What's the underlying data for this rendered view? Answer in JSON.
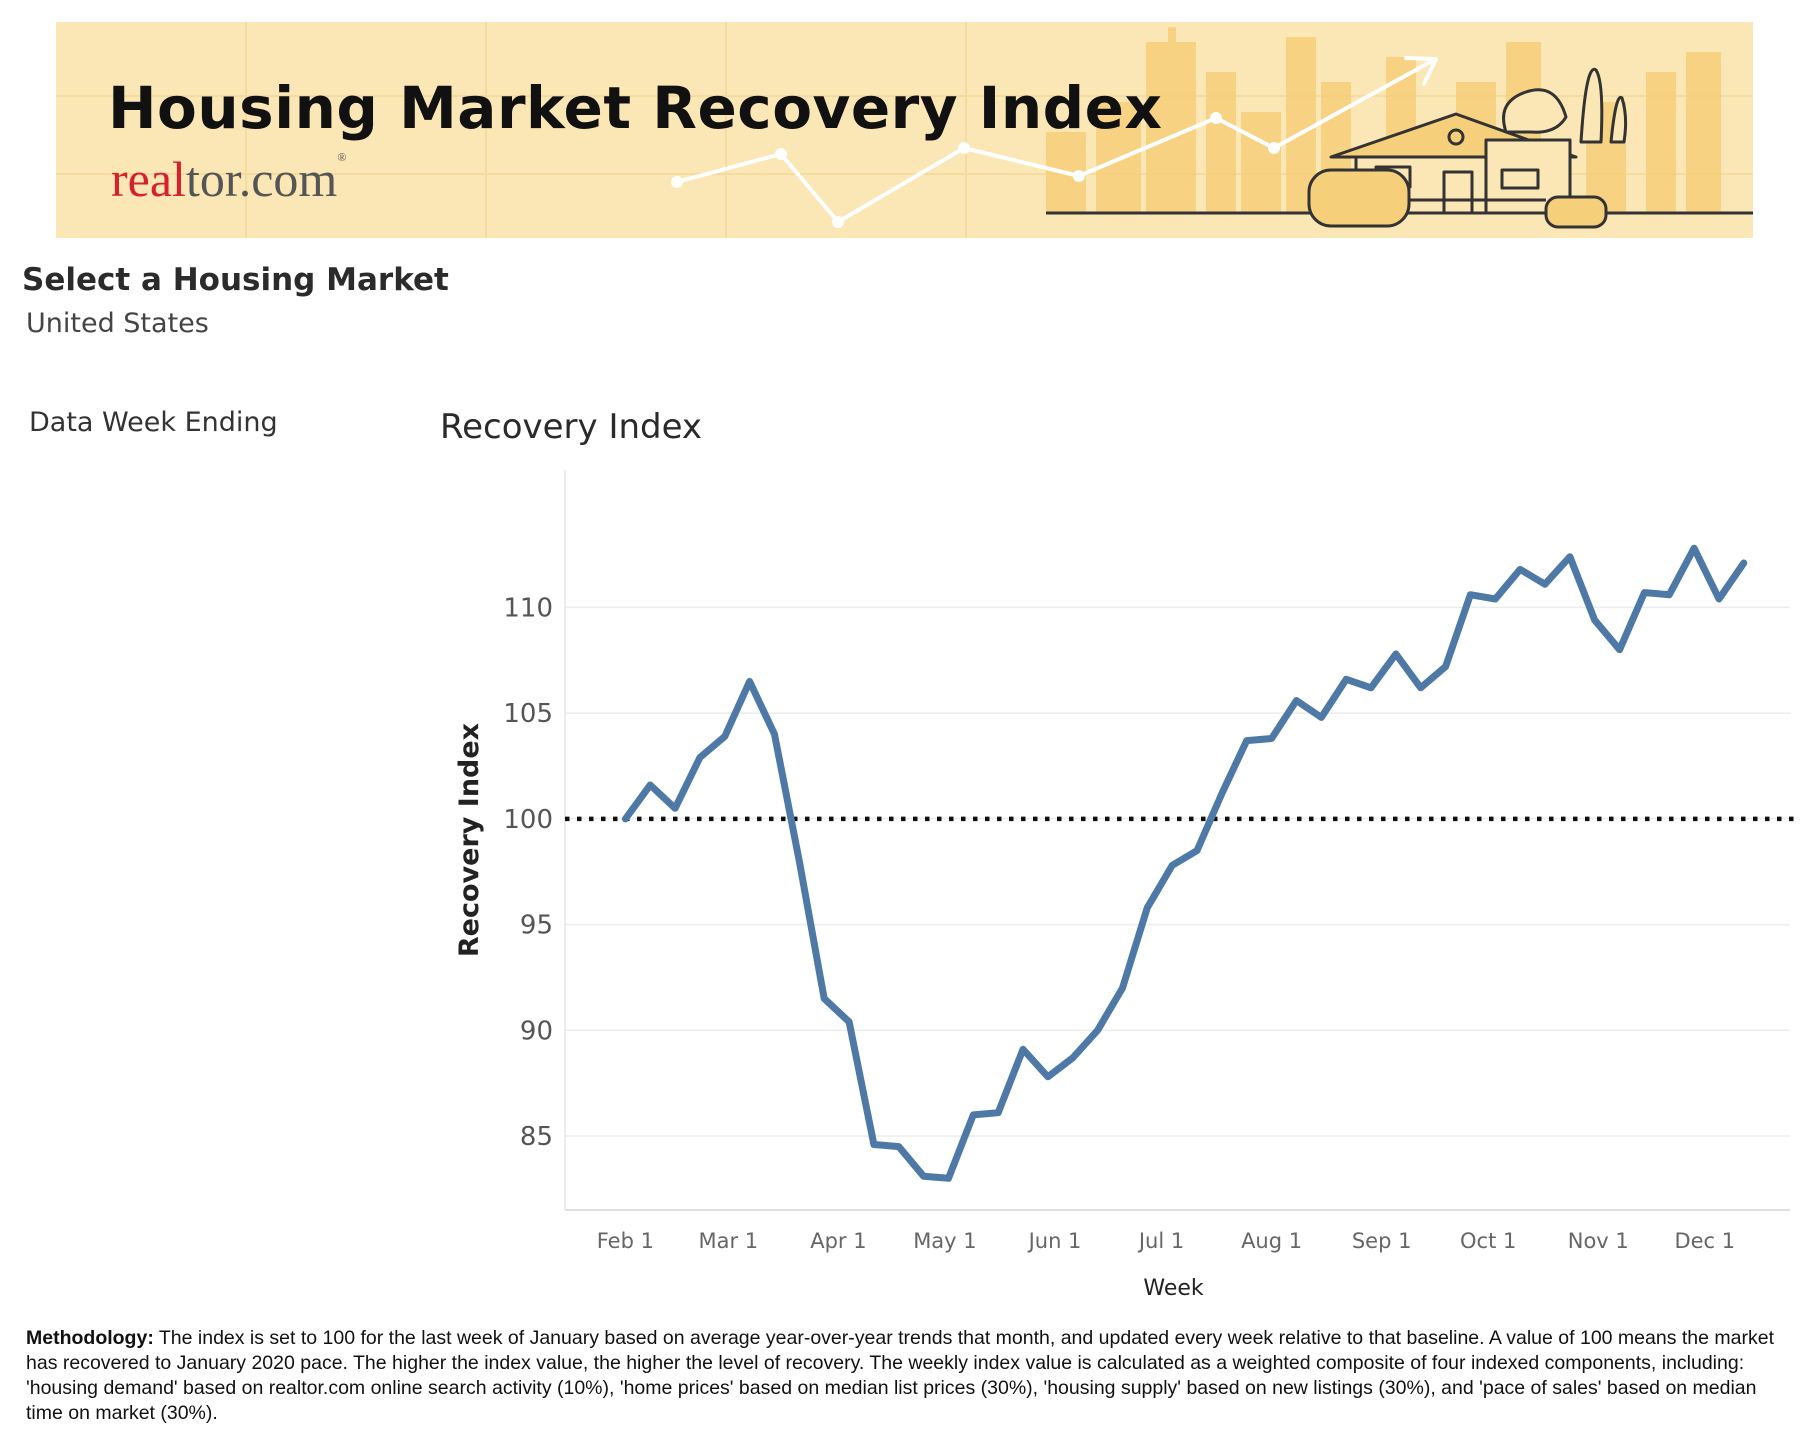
{
  "banner": {
    "title": "Housing Market Recovery Index",
    "logo_part1": "real",
    "logo_part2": "tor.com",
    "logo_mark": "®",
    "bg_color": "#fbe6b6",
    "illustration": "city-skyline-house-rising-arrow"
  },
  "filters": {
    "market_label": "Select a Housing Market",
    "market_value": "United States",
    "week_label": "Data Week Ending"
  },
  "chart_data": {
    "type": "line",
    "title": "Recovery Index",
    "xlabel": "Week",
    "ylabel": "Recovery Index",
    "ylim": [
      81.5,
      116.5
    ],
    "y_ticks": [
      85,
      90,
      95,
      100,
      105,
      110
    ],
    "x_ticks": [
      "Feb 1",
      "Mar 1",
      "Apr 1",
      "May 1",
      "Jun 1",
      "Jul 1",
      "Aug 1",
      "Sep 1",
      "Oct 1",
      "Nov 1",
      "Dec 1"
    ],
    "x_tick_dates": [
      "2020-02-01",
      "2020-03-01",
      "2020-04-01",
      "2020-05-01",
      "2020-06-01",
      "2020-07-01",
      "2020-08-01",
      "2020-09-01",
      "2020-10-01",
      "2020-11-01",
      "2020-12-01"
    ],
    "x_range": [
      "2020-01-15",
      "2020-12-25"
    ],
    "reference_line": {
      "y": 100,
      "style": "dotted",
      "color": "#111111"
    },
    "grid": true,
    "line_color": "#4e79a7",
    "series": [
      {
        "x": [
          "2020-02-01",
          "2020-02-08",
          "2020-02-15",
          "2020-02-22",
          "2020-02-29",
          "2020-03-07",
          "2020-03-14",
          "2020-03-21",
          "2020-03-28",
          "2020-04-04",
          "2020-04-11",
          "2020-04-18",
          "2020-04-25",
          "2020-05-02",
          "2020-05-09",
          "2020-05-16",
          "2020-05-23",
          "2020-05-30",
          "2020-06-06",
          "2020-06-13",
          "2020-06-20",
          "2020-06-27",
          "2020-07-04",
          "2020-07-11",
          "2020-07-18",
          "2020-07-25",
          "2020-08-01",
          "2020-08-08",
          "2020-08-15",
          "2020-08-22",
          "2020-08-29",
          "2020-09-05",
          "2020-09-12",
          "2020-09-19",
          "2020-09-26",
          "2020-10-03",
          "2020-10-10",
          "2020-10-17",
          "2020-10-24",
          "2020-10-31",
          "2020-11-07",
          "2020-11-14",
          "2020-11-21",
          "2020-11-28",
          "2020-12-05",
          "2020-12-12"
        ],
        "values": [
          100.0,
          101.6,
          100.5,
          102.9,
          103.9,
          106.5,
          104.0,
          98.0,
          91.5,
          90.4,
          84.6,
          84.5,
          83.1,
          83.0,
          86.0,
          86.1,
          89.1,
          87.8,
          88.7,
          90.0,
          92.0,
          95.8,
          97.8,
          98.5,
          101.2,
          103.7,
          103.8,
          105.6,
          104.8,
          106.6,
          106.2,
          107.8,
          106.2,
          107.2,
          110.6,
          110.4,
          111.8,
          111.1,
          112.4,
          109.4,
          108.0,
          110.7,
          110.6,
          112.8,
          110.4,
          112.1
        ]
      }
    ]
  },
  "methodology": {
    "label": "Methodology:",
    "text": " The index is set to 100 for the last week of January based on average year-over-year trends that month, and updated every week relative to that baseline. A value of 100 means the market has recovered to January 2020 pace. The higher the index value, the higher the level of recovery. The weekly index value is calculated as a weighted composite of four indexed components, including: 'housing demand' based on realtor.com online search activity (10%), 'home prices' based on median list prices (30%), 'housing supply' based on new listings (30%), and 'pace of sales' based on median time on market (30%)."
  }
}
